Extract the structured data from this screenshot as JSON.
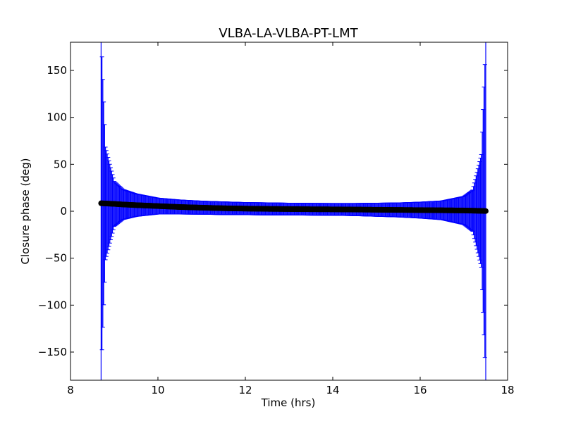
{
  "chart_data": {
    "type": "scatter",
    "title": "VLBA-LA-VLBA-PT-LMT",
    "xlabel": "Time (hrs)",
    "ylabel": "Closure phase (deg)",
    "xlim": [
      8,
      18
    ],
    "ylim": [
      -180,
      180
    ],
    "xticks": [
      8,
      10,
      12,
      14,
      16,
      18
    ],
    "xtick_labels": [
      "8",
      "10",
      "12",
      "14",
      "16",
      "18"
    ],
    "yticks": [
      -150,
      -100,
      -50,
      0,
      50,
      100,
      150
    ],
    "ytick_labels": [
      "−150",
      "−100",
      "−50",
      "0",
      "50",
      "100",
      "150"
    ],
    "grid": false,
    "legend": "none",
    "time_range": [
      8.7,
      17.5
    ],
    "marker_color": "#000000",
    "errorbar_color": "#0000ff",
    "series": [
      {
        "x": [
          8.7,
          8.8,
          9.0,
          9.2,
          9.5,
          10.0,
          10.5,
          11.0,
          11.5,
          12.0,
          12.5,
          13.0,
          13.5,
          14.0,
          14.5,
          15.0,
          15.5,
          16.0,
          16.5,
          17.0,
          17.2,
          17.4,
          17.5
        ],
        "y": [
          8.5,
          8.3,
          7.8,
          7.2,
          6.5,
          5.5,
          4.5,
          3.8,
          3.2,
          2.8,
          2.5,
          2.3,
          2.1,
          2.0,
          1.8,
          1.6,
          1.4,
          1.2,
          1.0,
          0.8,
          0.6,
          0.4,
          0.2
        ],
        "err": [
          180,
          60,
          24,
          16,
          12,
          8.5,
          7.5,
          7.0,
          6.8,
          6.5,
          6.5,
          6.3,
          6.3,
          6.3,
          6.5,
          7.0,
          7.5,
          8.5,
          10,
          15,
          22,
          60,
          180
        ]
      }
    ]
  }
}
